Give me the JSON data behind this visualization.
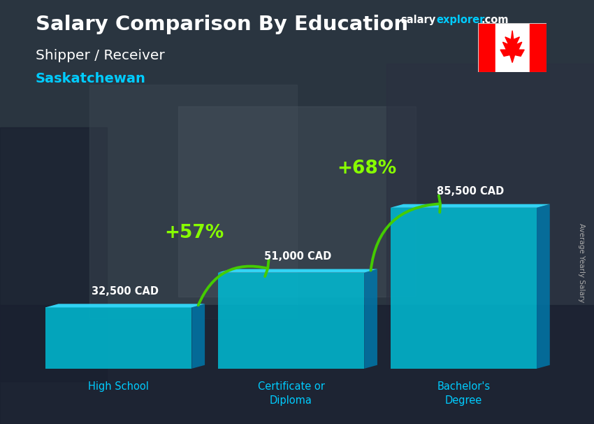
{
  "title": "Salary Comparison By Education",
  "subtitle1": "Shipper / Receiver",
  "subtitle2": "Saskatchewan",
  "categories": [
    "High School",
    "Certificate or\nDiploma",
    "Bachelor's\nDegree"
  ],
  "values": [
    32500,
    51000,
    85500
  ],
  "value_labels": [
    "32,500 CAD",
    "51,000 CAD",
    "85,500 CAD"
  ],
  "bar_face_color": "#00bcd4",
  "bar_side_color": "#0077aa",
  "bar_top_color": "#33ddff",
  "bar_alpha": 0.85,
  "pct_labels": [
    "+57%",
    "+68%"
  ],
  "pct_color": "#88ff00",
  "arrow_color": "#44cc00",
  "bg_color": "#2a3540",
  "title_color": "#ffffff",
  "subtitle1_color": "#ffffff",
  "subtitle2_color": "#00ccff",
  "value_label_color": "#ffffff",
  "cat_label_color": "#00ccff",
  "brand_salary_color": "#ffffff",
  "brand_explorer_color": "#00ccff",
  "brand_com_color": "#ffffff",
  "ylabel_color": "#aaaaaa",
  "ylabel_text": "Average Yearly Salary",
  "brand_text": "salaryexplorer.com"
}
